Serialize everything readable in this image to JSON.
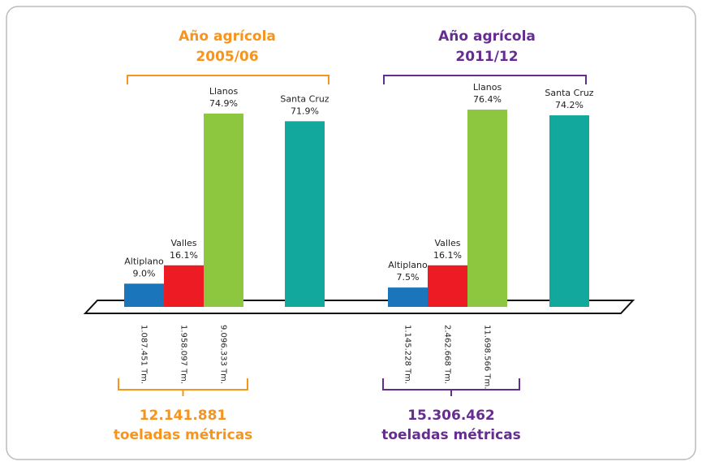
{
  "chart_data": [
    {
      "type": "bar",
      "title": "Año agrícola",
      "subtitle": "2005/06",
      "color": "#f7941d",
      "categories": [
        "Altiplano",
        "Valles",
        "Llanos",
        "Santa Cruz"
      ],
      "values": [
        9.0,
        16.1,
        74.9,
        71.9
      ],
      "value_labels": [
        "9.0%",
        "16.1%",
        "74.9%",
        "71.9%"
      ],
      "bar_colors": [
        "#1a75bb",
        "#ed1c24",
        "#8dc63f",
        "#12a89d"
      ],
      "tonnages": [
        "1.087.451 Tm.",
        "1.958.097 Tm.",
        "9.096.333 Tm.",
        null
      ],
      "total": "12.141.881",
      "total_unit": "toeladas métricas"
    },
    {
      "type": "bar",
      "title": "Año agrícola",
      "subtitle": "2011/12",
      "color": "#662d91",
      "categories": [
        "Altiplano",
        "Valles",
        "Llanos",
        "Santa Cruz"
      ],
      "values": [
        7.5,
        16.1,
        76.4,
        74.2
      ],
      "value_labels": [
        "7.5%",
        "16.1%",
        "76.4%",
        "74.2%"
      ],
      "bar_colors": [
        "#1a75bb",
        "#ed1c24",
        "#8dc63f",
        "#12a89d"
      ],
      "tonnages": [
        "1.145.228 Tm.",
        "2.462.668 Tm.",
        "11.698.566 Tm.",
        null
      ],
      "total": "15.306.462",
      "total_unit": "toeladas métricas"
    }
  ]
}
